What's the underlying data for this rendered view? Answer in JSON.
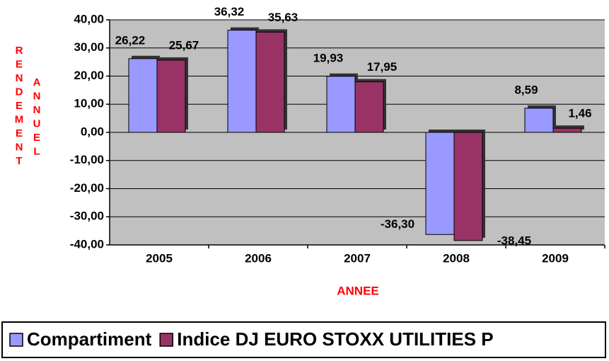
{
  "chart_data": {
    "type": "bar",
    "xlabel": "ANNEE",
    "ylabel": [
      "RENDEMENT",
      "ANNUEL"
    ],
    "categories": [
      "2005",
      "2006",
      "2007",
      "2008",
      "2009"
    ],
    "series": [
      {
        "name": "Compartiment",
        "color": "#9999ff",
        "values": [
          26.22,
          36.32,
          19.93,
          -36.3,
          8.59
        ],
        "value_labels": [
          "26,22",
          "36,32",
          "19,93",
          "-36,30",
          "8,59"
        ]
      },
      {
        "name": "Indice DJ EURO STOXX UTILITIES P",
        "color": "#993366",
        "values": [
          25.67,
          35.63,
          17.95,
          -38.45,
          1.46
        ],
        "value_labels": [
          "25,67",
          "35,63",
          "17,95",
          "-38,45",
          "1,46"
        ]
      }
    ],
    "ylim": [
      -40,
      40
    ],
    "yticks": [
      {
        "value": -40,
        "label": "-40,00"
      },
      {
        "value": -30,
        "label": "-30,00"
      },
      {
        "value": -20,
        "label": "-20,00"
      },
      {
        "value": -10,
        "label": "-10,00"
      },
      {
        "value": 0,
        "label": "0,00"
      },
      {
        "value": 10,
        "label": "10,00"
      },
      {
        "value": 20,
        "label": "20,00"
      },
      {
        "value": 30,
        "label": "30,00"
      },
      {
        "value": 40,
        "label": "40,00"
      }
    ],
    "grid": true
  }
}
